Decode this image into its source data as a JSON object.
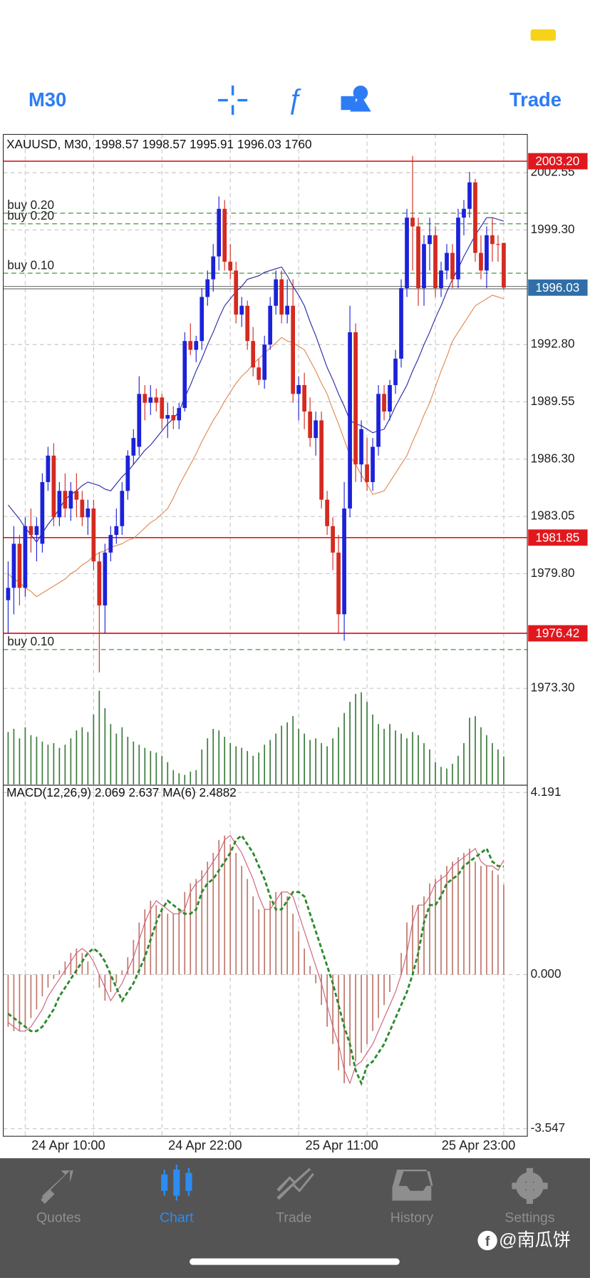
{
  "toolbar": {
    "timeframe": "M30",
    "trade": "Trade",
    "color": "#2d7cf6"
  },
  "tabs": [
    "Quotes",
    "Chart",
    "Trade",
    "History",
    "Settings"
  ],
  "active_tab": 1,
  "tab_color": "#8e8e8e",
  "active_color": "#2d8cf0",
  "watermark": "@南瓜饼",
  "chart_data": [
    {
      "type": "candlestick",
      "title": "XAUUSD, M30, 1998.57 1998.57 1995.91 1996.03 1760",
      "categories": [
        null,
        null,
        null,
        "24 Apr 10:00",
        null,
        null,
        null,
        null,
        null,
        null,
        null,
        null,
        null,
        null,
        null,
        null,
        null,
        null,
        null,
        null,
        null,
        null,
        null,
        null,
        null,
        null,
        null,
        "24 Apr 22:00",
        null,
        null,
        null,
        null,
        null,
        null,
        null,
        null,
        null,
        null,
        null,
        null,
        null,
        null,
        null,
        null,
        null,
        null,
        null,
        null,
        null,
        null,
        null,
        "25 Apr 11:00",
        null,
        null,
        null,
        null,
        null,
        null,
        null,
        null,
        null,
        null,
        null,
        null,
        null,
        null,
        null,
        null,
        null,
        null,
        null,
        null,
        null,
        null,
        null,
        "25 Apr 23:00",
        null,
        null,
        null,
        null,
        null,
        null,
        null,
        null,
        null,
        null,
        null,
        null
      ],
      "open": [
        1978.3,
        1979.0,
        1981.5,
        1979.0,
        1982.5,
        1982.0,
        1981.5,
        1985.0,
        1986.5,
        1983.0,
        1984.5,
        1983.5,
        1984.5,
        1984.0,
        1983.0,
        1983.5,
        1980.5,
        1978.0,
        1981.0,
        1982.0,
        1982.5,
        1984.5,
        1986.5,
        1987.0,
        1990.0,
        1989.5,
        1989.8,
        1989.8,
        1988.6,
        1988.8,
        1988.5,
        1989.2,
        1993.0,
        1992.5,
        1993.0,
        1995.5,
        1996.5,
        1997.8,
        2000.5,
        1997.5,
        1997.0,
        1994.5,
        1995.0,
        1993.0,
        1991.5,
        1990.8,
        1992.8,
        1995.0,
        1996.5,
        1994.5,
        1995.0,
        1990.0,
        1990.5,
        1989.0,
        1987.5,
        1988.5,
        1984.0,
        1982.5,
        1981.0,
        1977.5,
        1983.5,
        1993.5,
        1986.0,
        1986.0,
        1985.0,
        1987.0,
        1990.0,
        1989.0,
        1990.5,
        1992.0,
        1996.0,
        2000.0,
        1999.5,
        1996.0,
        1998.5,
        1999.0,
        1996.0,
        1997.0,
        1998.0,
        1996.5,
        2000.0,
        2000.5,
        2002.0,
        1998.0,
        1997.0,
        1999.0,
        1998.5,
        1998.57
      ],
      "high": [
        1980.5,
        1982.5,
        1982.0,
        1983.0,
        1983.5,
        1983.0,
        1985.5,
        1987.0,
        1987.2,
        1985.0,
        1985.5,
        1985.0,
        1985.5,
        1984.5,
        1984.0,
        1984.0,
        1981.0,
        1981.5,
        1982.5,
        1983.5,
        1985.0,
        1986.8,
        1988.0,
        1991.0,
        1990.5,
        1990.5,
        1990.3,
        1990.0,
        1989.5,
        1989.3,
        1989.5,
        1993.5,
        1994.0,
        1993.3,
        1996.0,
        1997.0,
        1998.5,
        2001.2,
        2001.0,
        1998.5,
        1997.5,
        1995.5,
        1995.3,
        1993.8,
        1992.0,
        1993.3,
        1995.5,
        1997.0,
        1997.0,
        1996.5,
        1996.5,
        1991.0,
        1991.2,
        1989.8,
        1989.0,
        1989.0,
        1984.5,
        1983.0,
        1982.0,
        1985.0,
        1995.0,
        1994.0,
        1988.5,
        1987.5,
        1987.5,
        1990.5,
        1990.5,
        1990.8,
        1992.5,
        1996.5,
        2000.5,
        2003.5,
        2000.0,
        1999.0,
        2000.0,
        1999.5,
        1997.5,
        1998.5,
        1998.5,
        2000.5,
        2001.0,
        2002.6,
        2002.2,
        1999.0,
        1999.5,
        2000.0,
        1999.0,
        1998.57
      ],
      "low": [
        1976.4,
        1977.5,
        1978.0,
        1978.5,
        1981.0,
        1980.5,
        1981.0,
        1984.5,
        1982.5,
        1982.5,
        1983.0,
        1982.8,
        1983.0,
        1982.5,
        1982.0,
        1980.0,
        1974.2,
        1976.4,
        1980.5,
        1981.5,
        1982.0,
        1984.0,
        1986.0,
        1986.5,
        1988.5,
        1988.8,
        1989.0,
        1988.0,
        1987.5,
        1988.0,
        1988.0,
        1989.0,
        1992.2,
        1991.8,
        1992.5,
        1995.0,
        1995.8,
        1997.0,
        1997.0,
        1996.5,
        1994.0,
        1993.8,
        1992.5,
        1991.0,
        1990.5,
        1990.3,
        1992.5,
        1994.5,
        1994.0,
        1994.0,
        1989.5,
        1988.5,
        1988.0,
        1987.0,
        1986.5,
        1983.5,
        1982.0,
        1980.0,
        1976.4,
        1976.0,
        1983.0,
        1985.0,
        1985.0,
        1984.5,
        1984.5,
        1986.5,
        1988.5,
        1988.5,
        1990.0,
        1991.5,
        1995.5,
        1997.0,
        1995.0,
        1995.0,
        1997.0,
        1995.5,
        1995.5,
        1996.5,
        1996.0,
        1996.0,
        1999.0,
        2000.0,
        1997.5,
        1996.5,
        1996.0,
        1997.5,
        1997.5,
        1995.91
      ],
      "close": [
        1979.0,
        1981.5,
        1979.0,
        1982.5,
        1982.0,
        1982.5,
        1985.0,
        1986.5,
        1983.0,
        1984.5,
        1983.5,
        1984.5,
        1984.0,
        1983.0,
        1983.5,
        1980.5,
        1978.0,
        1981.0,
        1982.0,
        1982.5,
        1984.5,
        1986.5,
        1987.5,
        1990.0,
        1989.5,
        1989.8,
        1989.5,
        1988.6,
        1988.8,
        1988.5,
        1989.2,
        1993.0,
        1992.5,
        1993.0,
        1995.5,
        1996.5,
        1997.8,
        2000.5,
        1997.5,
        1997.0,
        1994.5,
        1995.0,
        1993.0,
        1991.5,
        1990.8,
        1992.8,
        1995.0,
        1996.5,
        1994.5,
        1995.0,
        1990.0,
        1990.5,
        1989.0,
        1987.5,
        1988.5,
        1984.0,
        1982.5,
        1981.0,
        1977.5,
        1983.5,
        1993.5,
        1986.0,
        1988.0,
        1985.0,
        1987.0,
        1990.0,
        1989.0,
        1990.5,
        1992.0,
        1996.0,
        2000.0,
        1999.5,
        1996.0,
        1998.5,
        1999.0,
        1996.0,
        1997.0,
        1998.0,
        1996.5,
        2000.0,
        2000.5,
        2002.0,
        1998.0,
        1997.0,
        1999.0,
        1998.5,
        1998.5,
        1996.03
      ],
      "up_color": "#1c22d8",
      "down_color": "#d42a20",
      "volume": [
        3300,
        3500,
        2900,
        3600,
        3100,
        3000,
        2700,
        2500,
        2600,
        2300,
        2500,
        2900,
        3400,
        3600,
        3300,
        4400,
        5900,
        4800,
        3800,
        3200,
        3600,
        3000,
        2700,
        2500,
        2300,
        2100,
        2000,
        1800,
        1400,
        900,
        700,
        600,
        800,
        900,
        2200,
        2900,
        3500,
        3400,
        3000,
        2600,
        2400,
        2300,
        2100,
        1800,
        2000,
        2500,
        2800,
        3200,
        3700,
        3900,
        4300,
        3500,
        3200,
        2800,
        2900,
        2600,
        2400,
        2900,
        3600,
        4500,
        5200,
        5700,
        5800,
        5200,
        4400,
        3800,
        3500,
        3800,
        3400,
        3200,
        2900,
        3300,
        3100,
        2600,
        2200,
        1400,
        1100,
        1000,
        1300,
        1800,
        2600,
        4200,
        4300,
        3600,
        3100,
        2600,
        2200,
        1760
      ],
      "volume_color": "#3d7d3d",
      "overlays": [
        {
          "color": "#2b2ba8",
          "values": [
            1983.7,
            1983.3,
            1982.9,
            1982.4,
            1982.0,
            1981.6,
            1982.1,
            1982.6,
            1983.0,
            1983.5,
            1984.0,
            1984.3,
            1984.5,
            1984.8,
            1985.0,
            1984.9,
            1984.8,
            1984.6,
            1984.5,
            1984.9,
            1985.3,
            1985.6,
            1986.0,
            1986.4,
            1986.8,
            1987.1,
            1987.5,
            1987.9,
            1988.3,
            1988.6,
            1989.0,
            1989.8,
            1990.5,
            1991.3,
            1992.0,
            1992.8,
            1993.5,
            1994.3,
            1995.0,
            1995.4,
            1995.8,
            1996.1,
            1996.5,
            1996.6,
            1996.7,
            1996.9,
            1997.0,
            1997.1,
            1997.2,
            1996.7,
            1996.1,
            1995.6,
            1995.0,
            1994.1,
            1993.3,
            1992.4,
            1991.5,
            1990.8,
            1990.0,
            1989.3,
            1988.5,
            1988.3,
            1988.2,
            1988.0,
            1987.8,
            1987.9,
            1988.0,
            1988.6,
            1989.3,
            1989.9,
            1990.5,
            1991.3,
            1992.0,
            1992.8,
            1993.5,
            1994.3,
            1995.0,
            1995.8,
            1996.5,
            1997.1,
            1997.8,
            1998.4,
            1999.0,
            1999.5,
            2000.0,
            2000.0,
            1999.9,
            1999.8
          ]
        },
        {
          "color": "#e08a55",
          "values": [
            1979.8,
            1979.5,
            1979.3,
            1979.0,
            1978.8,
            1978.5,
            1978.7,
            1978.9,
            1979.1,
            1979.3,
            1979.5,
            1979.8,
            1980.0,
            1980.3,
            1980.5,
            1980.8,
            1981.0,
            1981.1,
            1981.3,
            1981.4,
            1981.5,
            1981.7,
            1981.8,
            1982.1,
            1982.4,
            1982.7,
            1982.9,
            1983.2,
            1983.5,
            1984.1,
            1984.8,
            1985.4,
            1986.0,
            1986.6,
            1987.3,
            1987.9,
            1988.5,
            1989.0,
            1989.6,
            1990.1,
            1990.6,
            1991.0,
            1991.3,
            1991.7,
            1992.0,
            1992.3,
            1992.6,
            1992.9,
            1993.2,
            1993.0,
            1992.9,
            1992.7,
            1992.5,
            1991.9,
            1991.3,
            1990.6,
            1990.0,
            1989.1,
            1988.3,
            1987.4,
            1986.5,
            1986.0,
            1985.4,
            1984.9,
            1984.3,
            1984.4,
            1984.5,
            1985.0,
            1985.5,
            1986.0,
            1986.5,
            1987.3,
            1988.0,
            1988.8,
            1989.5,
            1990.4,
            1991.3,
            1992.1,
            1993.0,
            1993.5,
            1994.0,
            1994.5,
            1995.0,
            1995.2,
            1995.4,
            1995.6,
            1995.5,
            1995.4
          ]
        }
      ],
      "levels": [
        {
          "value": 2003.2,
          "label": "2003.20",
          "color": "#e0181e"
        },
        {
          "value": 1981.85,
          "color": "#e0181e"
        },
        {
          "value": 1976.42,
          "color": "#e0181e"
        }
      ],
      "orders": [
        {
          "label": "buy 0.20",
          "value": 2000.25
        },
        {
          "label": "buy 0.20",
          "value": 1999.65
        },
        {
          "label": "buy 0.10",
          "value": 1996.85
        },
        {
          "label": "buy 0.10",
          "value": 1975.5
        }
      ],
      "order_color": "#2e8a2e",
      "current": {
        "value": 1996.03,
        "color": "#2f6ea8"
      },
      "ylim": [
        1967.85,
        2004.72
      ],
      "yticks": [
        2002.55,
        {
          "value": 1999.3,
          "label": "1999.30"
        },
        {
          "value": 1992.8,
          "label": "1992.80"
        },
        1989.55,
        {
          "value": 1986.3,
          "label": "1986.30"
        },
        1983.05,
        {
          "value": 1979.8,
          "label": "1979.80"
        },
        {
          "value": 1973.3,
          "label": "1973.30"
        }
      ],
      "grid": true
    },
    {
      "type": "macd",
      "title": "MACD(12,26,9) 2.069 2.637 MA(6) 2.4882",
      "histogram": [
        -1.2,
        -1.3,
        -1.3,
        -1.2,
        -1.0,
        -0.8,
        -0.5,
        -0.3,
        -0.1,
        0.1,
        0.3,
        0.5,
        0.6,
        0.5,
        0.3,
        0.0,
        -0.3,
        -0.6,
        -0.4,
        -0.2,
        0.1,
        0.4,
        0.8,
        1.2,
        1.5,
        1.7,
        1.6,
        1.5,
        1.4,
        1.4,
        1.5,
        1.9,
        2.1,
        2.2,
        2.4,
        2.6,
        2.8,
        3.1,
        3.2,
        3.0,
        2.8,
        2.5,
        2.2,
        1.8,
        1.5,
        1.5,
        1.7,
        1.9,
        1.9,
        1.8,
        1.4,
        1.0,
        0.6,
        0.2,
        -0.2,
        -0.7,
        -1.2,
        -1.6,
        -2.2,
        -2.5,
        -2.1,
        -2.0,
        -1.8,
        -1.6,
        -1.3,
        -1.0,
        -0.7,
        -0.4,
        0.0,
        0.5,
        1.2,
        1.6,
        1.6,
        1.8,
        2.1,
        2.2,
        2.3,
        2.5,
        2.6,
        2.7,
        2.8,
        2.9,
        2.6,
        2.5,
        2.5,
        2.4,
        2.3,
        2.069
      ],
      "histogram_color": "#c0786c",
      "series": [
        {
          "color": "#d0607a",
          "dashed": false,
          "values": [
            -1.1,
            -1.2,
            -1.3,
            -1.3,
            -1.2,
            -1.0,
            -0.8,
            -0.5,
            -0.3,
            -0.1,
            0.1,
            0.3,
            0.5,
            0.6,
            0.5,
            0.3,
            0.0,
            -0.3,
            -0.6,
            -0.4,
            -0.2,
            0.1,
            0.4,
            0.8,
            1.2,
            1.5,
            1.7,
            1.6,
            1.5,
            1.4,
            1.4,
            1.5,
            1.9,
            2.1,
            2.2,
            2.4,
            2.6,
            2.8,
            3.1,
            3.2,
            3.0,
            2.8,
            2.5,
            2.2,
            1.8,
            1.5,
            1.5,
            1.7,
            1.9,
            1.9,
            1.8,
            1.4,
            1.0,
            0.6,
            0.2,
            -0.2,
            -0.7,
            -1.2,
            -1.6,
            -2.2,
            -2.5,
            -2.1,
            -2.0,
            -1.8,
            -1.6,
            -1.3,
            -1.0,
            -0.7,
            -0.4,
            0.0,
            0.5,
            1.2,
            1.6,
            1.6,
            1.8,
            2.1,
            2.2,
            2.3,
            2.5,
            2.6,
            2.7,
            2.8,
            2.9,
            2.6,
            2.5,
            2.5,
            2.4,
            2.637
          ]
        },
        {
          "color": "#2a8a2a",
          "dashed": true,
          "values": [
            -0.9,
            -1.0,
            -1.1,
            -1.2,
            -1.3,
            -1.3,
            -1.2,
            -1.0,
            -0.8,
            -0.5,
            -0.3,
            -0.1,
            0.1,
            0.3,
            0.5,
            0.6,
            0.5,
            0.3,
            0.0,
            -0.3,
            -0.6,
            -0.4,
            -0.2,
            0.1,
            0.4,
            0.8,
            1.2,
            1.5,
            1.7,
            1.6,
            1.5,
            1.4,
            1.4,
            1.5,
            1.9,
            2.1,
            2.2,
            2.4,
            2.6,
            2.8,
            3.1,
            3.2,
            3.0,
            2.8,
            2.5,
            2.2,
            1.8,
            1.5,
            1.5,
            1.7,
            1.9,
            1.9,
            1.8,
            1.4,
            1.0,
            0.6,
            0.2,
            -0.2,
            -0.7,
            -1.2,
            -1.6,
            -2.2,
            -2.5,
            -2.1,
            -2.0,
            -1.8,
            -1.6,
            -1.3,
            -1.0,
            -0.7,
            -0.4,
            0.0,
            0.5,
            1.2,
            1.6,
            1.6,
            1.8,
            2.1,
            2.2,
            2.3,
            2.5,
            2.6,
            2.7,
            2.8,
            2.9,
            2.6,
            2.5,
            2.4882
          ]
        }
      ],
      "ylim": [
        -3.72,
        4.34
      ],
      "yticks": [
        4.191,
        {
          "value": 0,
          "label": "0.000"
        },
        -3.547
      ],
      "grid": true
    }
  ]
}
